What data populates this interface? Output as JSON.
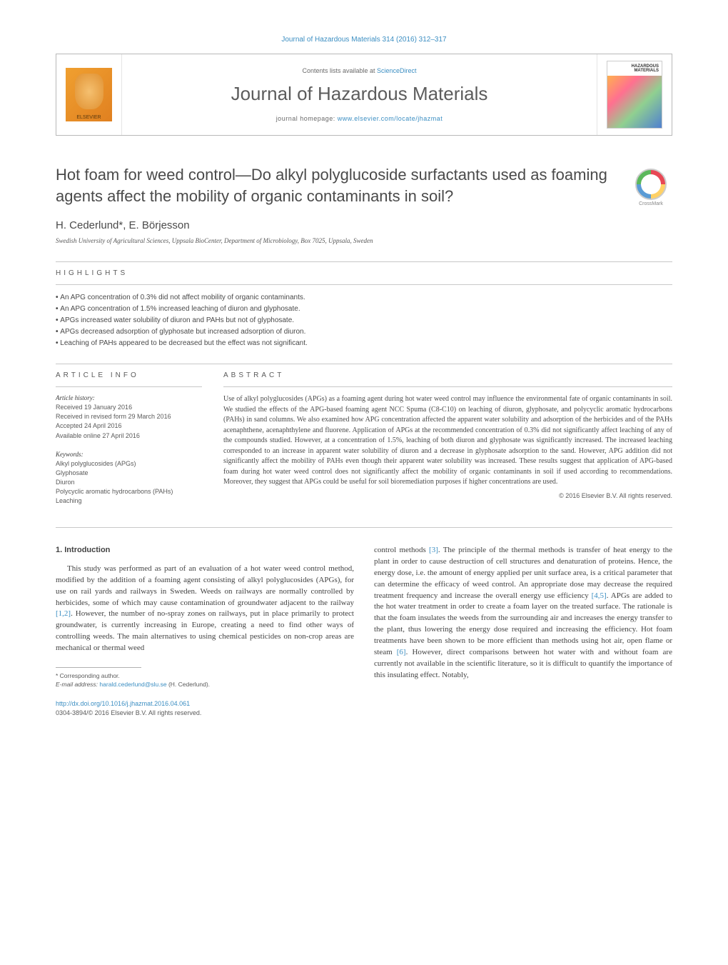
{
  "journal_ref_text": "Journal of Hazardous Materials 314 (2016) 312–317",
  "journal_ref_color": "#3b8ec2",
  "header": {
    "contents_prefix": "Contents lists available at ",
    "contents_link": "ScienceDirect",
    "journal_name": "Journal of Hazardous Materials",
    "homepage_prefix": "journal homepage: ",
    "homepage_link": "www.elsevier.com/locate/jhazmat",
    "publisher_logo_label": "ELSEVIER",
    "cover_title": "HAZARDOUS MATERIALS"
  },
  "crossmark_label": "CrossMark",
  "article": {
    "title": "Hot foam for weed control—Do alkyl polyglucoside surfactants used as foaming agents affect the mobility of organic contaminants in soil?",
    "authors": "H. Cederlund*, E. Börjesson",
    "affiliation": "Swedish University of Agricultural Sciences, Uppsala BioCenter, Department of Microbiology, Box 7025, Uppsala, Sweden"
  },
  "highlights": {
    "heading": "HIGHLIGHTS",
    "items": [
      "An APG concentration of 0.3% did not affect mobility of organic contaminants.",
      "An APG concentration of 1.5% increased leaching of diuron and glyphosate.",
      "APGs increased water solubility of diuron and PAHs but not of glyphosate.",
      "APGs decreased adsorption of glyphosate but increased adsorption of diuron.",
      "Leaching of PAHs appeared to be decreased but the effect was not significant."
    ]
  },
  "info": {
    "heading": "ARTICLE INFO",
    "history_title": "Article history:",
    "history": [
      "Received 19 January 2016",
      "Received in revised form 29 March 2016",
      "Accepted 24 April 2016",
      "Available online 27 April 2016"
    ],
    "keywords_title": "Keywords:",
    "keywords": [
      "Alkyl polyglucosides (APGs)",
      "Glyphosate",
      "Diuron",
      "Polycyclic aromatic hydrocarbons (PAHs)",
      "Leaching"
    ]
  },
  "abstract": {
    "heading": "ABSTRACT",
    "text": "Use of alkyl polyglucosides (APGs) as a foaming agent during hot water weed control may influence the environmental fate of organic contaminants in soil. We studied the effects of the APG-based foaming agent NCC Spuma (C8-C10) on leaching of diuron, glyphosate, and polycyclic aromatic hydrocarbons (PAHs) in sand columns. We also examined how APG concentration affected the apparent water solubility and adsorption of the herbicides and of the PAHs acenaphthene, acenaphthylene and fluorene. Application of APGs at the recommended concentration of 0.3% did not significantly affect leaching of any of the compounds studied. However, at a concentration of 1.5%, leaching of both diuron and glyphosate was significantly increased. The increased leaching corresponded to an increase in apparent water solubility of diuron and a decrease in glyphosate adsorption to the sand. However, APG addition did not significantly affect the mobility of PAHs even though their apparent water solubility was increased. These results suggest that application of APG-based foam during hot water weed control does not significantly affect the mobility of organic contaminants in soil if used according to recommendations. Moreover, they suggest that APGs could be useful for soil bioremediation purposes if higher concentrations are used.",
    "copyright": "© 2016 Elsevier B.V. All rights reserved."
  },
  "body": {
    "section_number": "1.",
    "section_title": "Introduction",
    "col1_p1_a": "This study was performed as part of an evaluation of a hot water weed control method, modified by the addition of a foaming agent consisting of alkyl polyglucosides (APGs), for use on rail yards and railways in Sweden. Weeds on railways are normally controlled by herbicides, some of which may cause contamination of groundwater adjacent to the railway ",
    "cite1": "[1,2]",
    "col1_p1_b": ". However, the number of no-spray zones on railways, put in place primarily to protect groundwater, is currently increasing in Europe, creating a need to find other ways of controlling weeds. The main alternatives to using chemical pesticides on non-crop areas are mechanical or thermal weed",
    "col2_p1_a": "control methods ",
    "cite2": "[3]",
    "col2_p1_b": ". The principle of the thermal methods is transfer of heat energy to the plant in order to cause destruction of cell structures and denaturation of proteins. Hence, the energy dose, i.e. the amount of energy applied per unit surface area, is a critical parameter that can determine the efficacy of weed control. An appropriate dose may decrease the required treatment frequency and increase the overall energy use efficiency ",
    "cite3": "[4,5]",
    "col2_p1_c": ". APGs are added to the hot water treatment in order to create a foam layer on the treated surface. The rationale is that the foam insulates the weeds from the surrounding air and increases the energy transfer to the plant, thus lowering the energy dose required and increasing the efficiency. Hot foam treatments have been shown to be more efficient than methods using hot air, open flame or steam ",
    "cite4": "[6]",
    "col2_p1_d": ". However, direct comparisons between hot water with and without foam are currently not available in the scientific literature, so it is difficult to quantify the importance of this insulating effect. Notably,"
  },
  "footnote": {
    "corr": "* Corresponding author.",
    "email_label": "E-mail address: ",
    "email": "harald.cederlund@slu.se",
    "email_suffix": " (H. Cederlund)."
  },
  "doi": {
    "link": "http://dx.doi.org/10.1016/j.jhazmat.2016.04.061",
    "line2": "0304-3894/© 2016 Elsevier B.V. All rights reserved."
  },
  "colors": {
    "link": "#3b8ec2",
    "text": "#4a4a4a",
    "rule": "#c8c8c8"
  }
}
